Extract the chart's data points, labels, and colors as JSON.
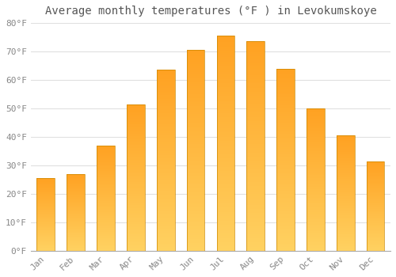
{
  "title": "Average monthly temperatures (°F ) in Levokumskoye",
  "months": [
    "Jan",
    "Feb",
    "Mar",
    "Apr",
    "May",
    "Jun",
    "Jul",
    "Aug",
    "Sep",
    "Oct",
    "Nov",
    "Dec"
  ],
  "values": [
    25.5,
    27.0,
    37.0,
    51.5,
    63.5,
    70.5,
    75.5,
    73.5,
    64.0,
    50.0,
    40.5,
    31.5
  ],
  "bar_color_bottom": "#FFD060",
  "bar_color_top": "#FFA020",
  "bar_edge_color": "#CC8800",
  "ylim": [
    0,
    80
  ],
  "yticks": [
    0,
    10,
    20,
    30,
    40,
    50,
    60,
    70,
    80
  ],
  "ytick_labels": [
    "0°F",
    "10°F",
    "20°F",
    "30°F",
    "40°F",
    "50°F",
    "60°F",
    "70°F",
    "80°F"
  ],
  "background_color": "#FFFFFF",
  "plot_bg_color": "#FFFFFF",
  "grid_color": "#E0E0E0",
  "title_fontsize": 10,
  "tick_fontsize": 8,
  "tick_color": "#888888",
  "bar_width": 0.6
}
